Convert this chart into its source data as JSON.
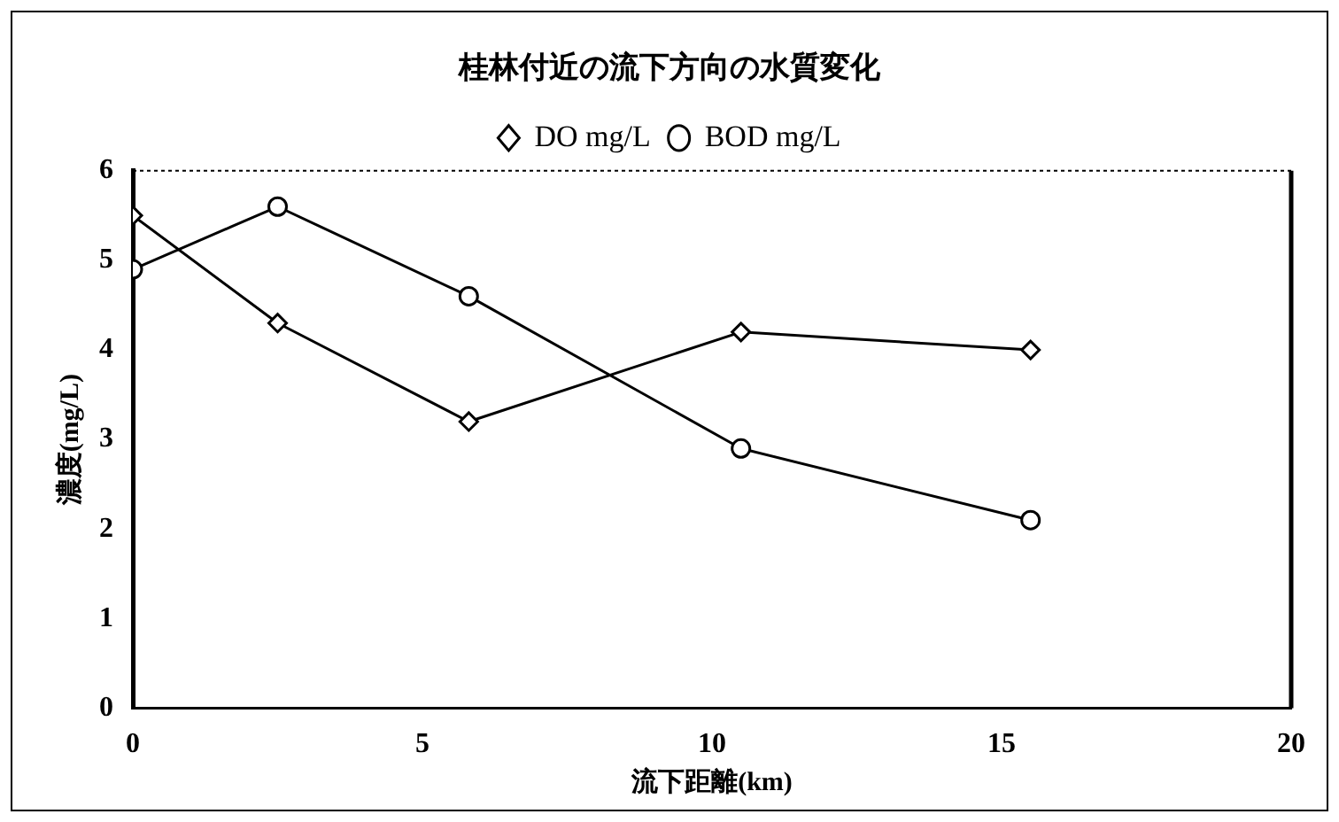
{
  "chart_data": {
    "type": "line",
    "title": "桂林付近の流下方向の水質変化",
    "xlabel": "流下距離(km)",
    "ylabel": "濃度(mg/L)",
    "xlim": [
      0,
      20
    ],
    "xticks": [
      0,
      5,
      10,
      15,
      20
    ],
    "ylim": [
      0,
      6
    ],
    "yticks": [
      0,
      1,
      2,
      3,
      4,
      5,
      6
    ],
    "grid": false,
    "legend": "top",
    "series": [
      {
        "name": "DO mg/L",
        "color": "#000000",
        "marker": "diamond",
        "x": [
          0,
          2.5,
          5.8,
          10.5,
          15.5
        ],
        "values": [
          5.5,
          4.3,
          3.2,
          4.2,
          4.0
        ]
      },
      {
        "name": "BOD mg/L",
        "color": "#000000",
        "marker": "circle",
        "x": [
          0,
          2.5,
          5.8,
          10.5,
          15.5
        ],
        "values": [
          4.9,
          5.6,
          4.6,
          2.9,
          2.1
        ]
      }
    ]
  }
}
